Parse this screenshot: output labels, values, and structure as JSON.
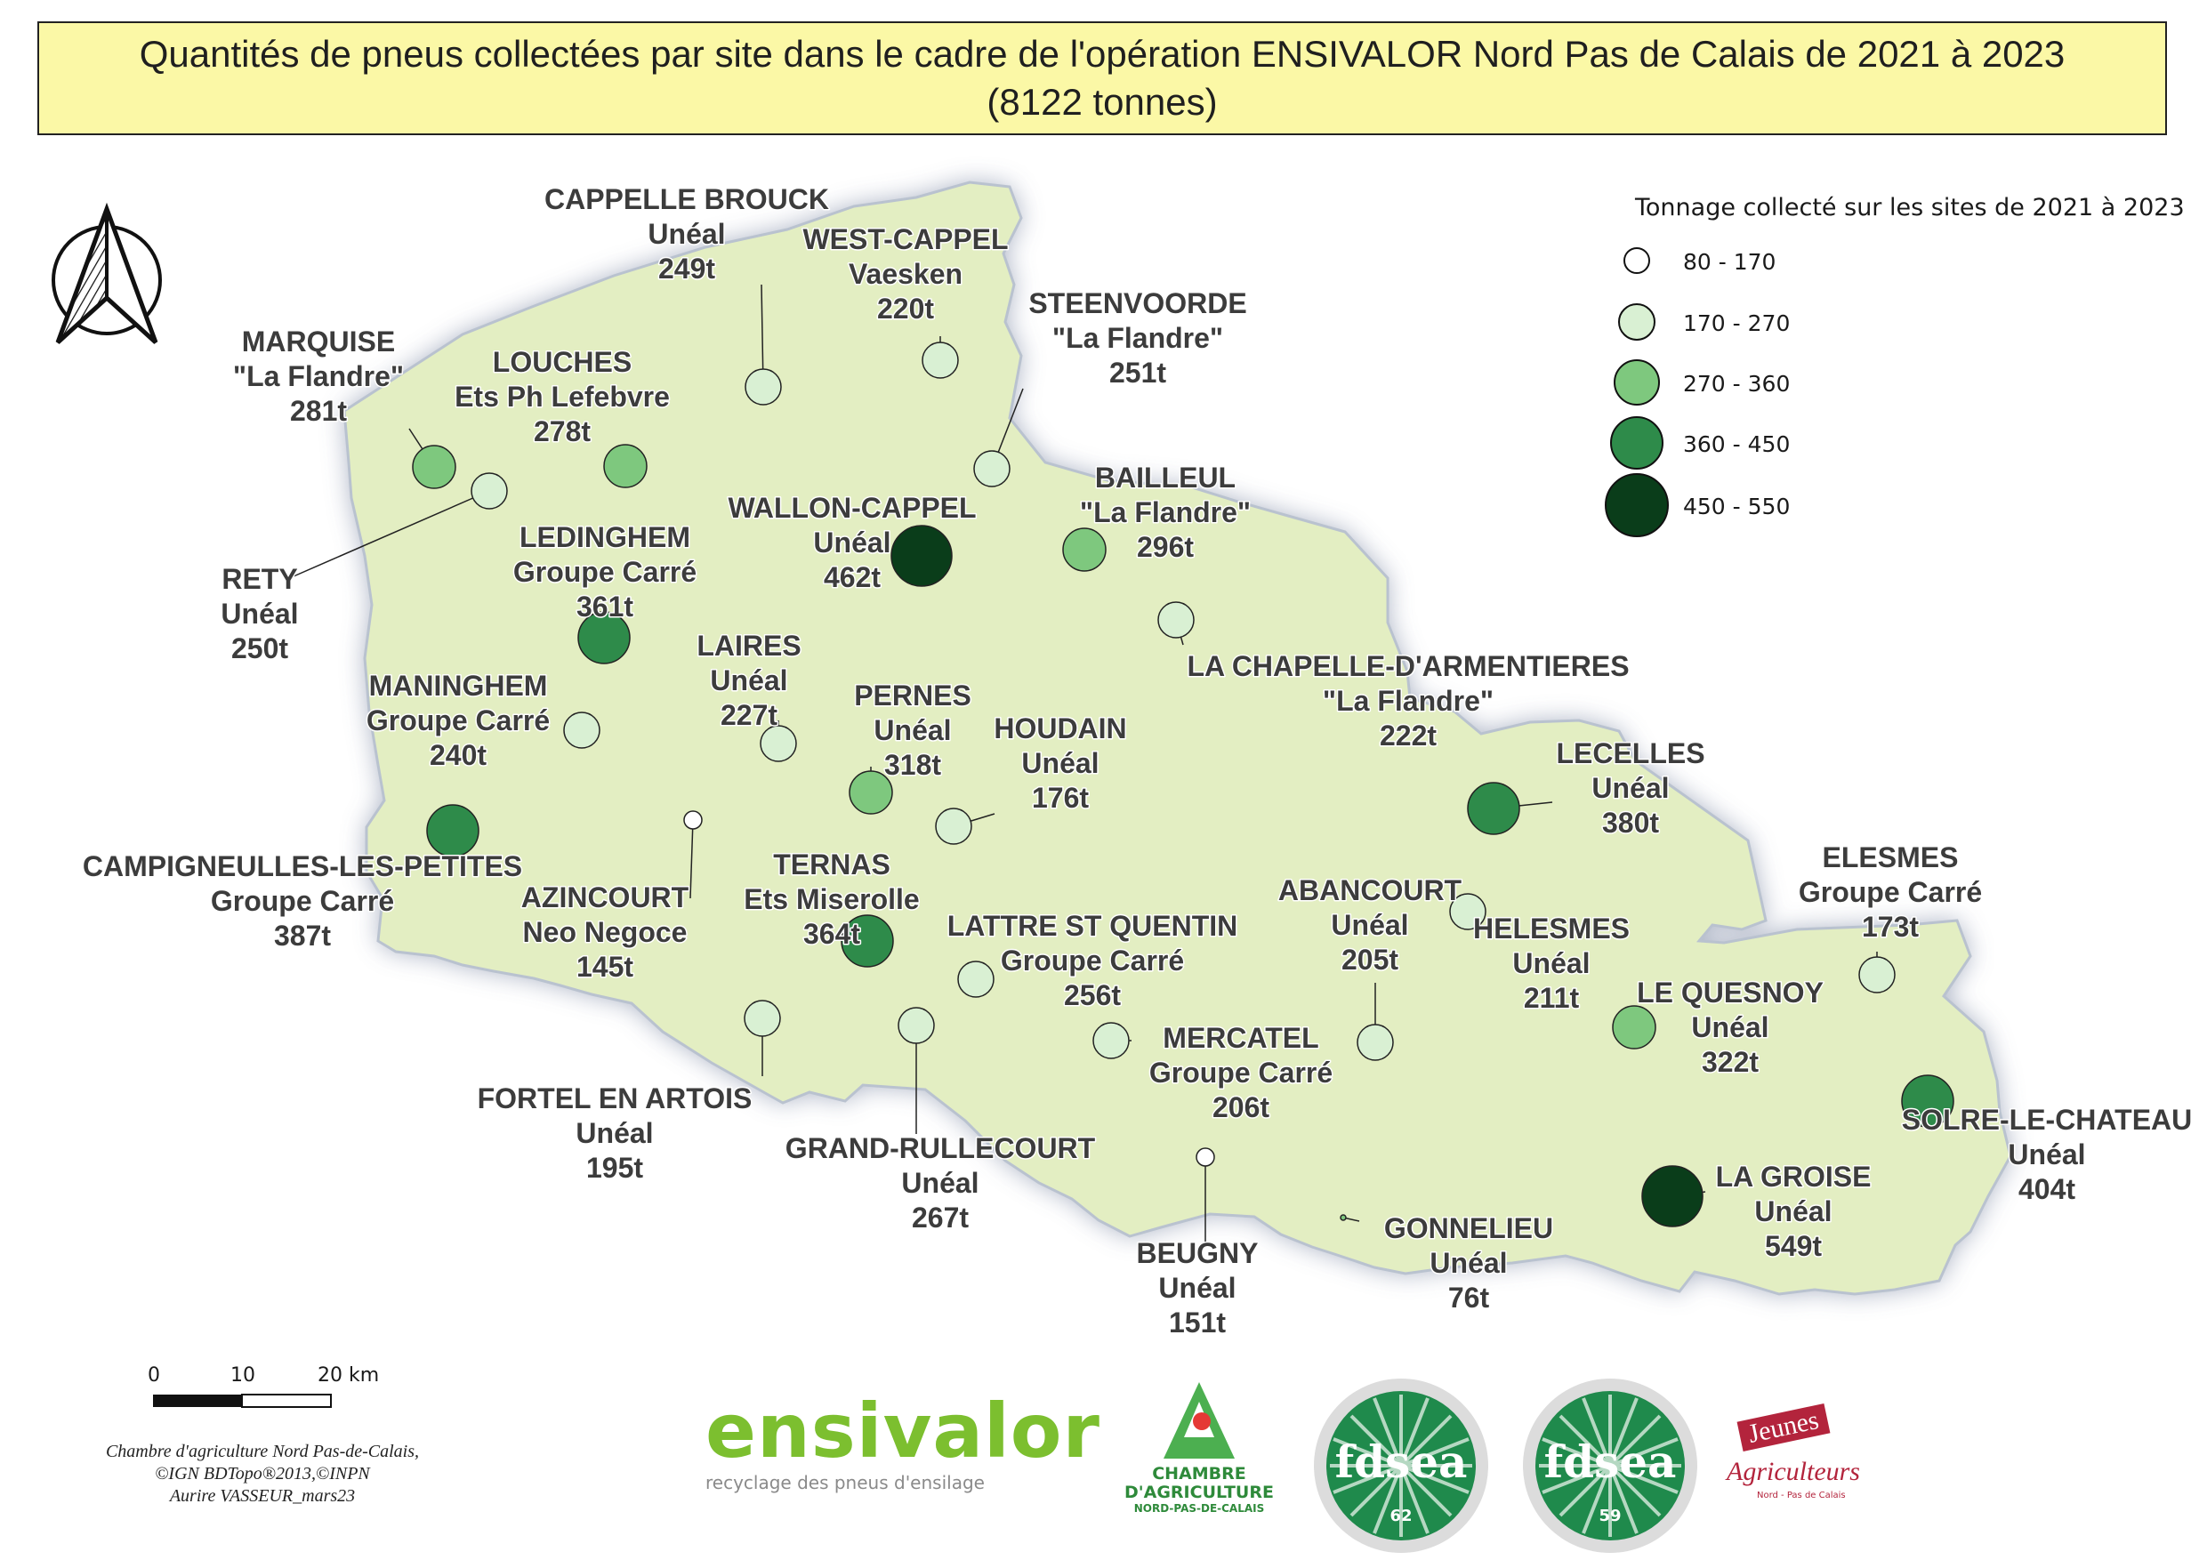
{
  "title": {
    "line1": "Quantités de pneus collectées par site dans le cadre de l'opération ENSIVALOR Nord Pas de Calais de 2021 à 2023",
    "line2": "(8122 tonnes)"
  },
  "legend": {
    "title": "Tonnage collecté sur les sites de 2021 à 2023",
    "classes": [
      {
        "label": "80 - 170",
        "color": "#ffffff"
      },
      {
        "label": "170 - 270",
        "color": "#d9f0d3"
      },
      {
        "label": "270 - 360",
        "color": "#7ec87e"
      },
      {
        "label": "360 - 450",
        "color": "#2e8b4a"
      },
      {
        "label": "450 - 550",
        "color": "#0a3d1a"
      }
    ]
  },
  "scale_bar": {
    "labels": [
      "0",
      "10",
      "20 km"
    ]
  },
  "sites": [
    {
      "name": "CAPPELLE BROUCK",
      "operator": "Unéal",
      "tonnage": "249t"
    },
    {
      "name": "WEST-CAPPEL",
      "operator": "Vaesken",
      "tonnage": "220t"
    },
    {
      "name": "STEENVOORDE",
      "operator": "\"La Flandre\"",
      "tonnage": "251t"
    },
    {
      "name": "MARQUISE",
      "operator": "\"La Flandre\"",
      "tonnage": "281t"
    },
    {
      "name": "LOUCHES",
      "operator": "Ets Ph Lefebvre",
      "tonnage": "278t"
    },
    {
      "name": "RETY",
      "operator": "Unéal",
      "tonnage": "250t"
    },
    {
      "name": "WALLON-CAPPEL",
      "operator": "Unéal",
      "tonnage": "462t"
    },
    {
      "name": "BAILLEUL",
      "operator": "\"La Flandre\"",
      "tonnage": "296t"
    },
    {
      "name": "LEDINGHEM",
      "operator": "Groupe Carré",
      "tonnage": "361t"
    },
    {
      "name": "LA CHAPELLE-D'ARMENTIERES",
      "operator": "\"La Flandre\"",
      "tonnage": "222t"
    },
    {
      "name": "LAIRES",
      "operator": "Unéal",
      "tonnage": "227t"
    },
    {
      "name": "MANINGHEM",
      "operator": "Groupe Carré",
      "tonnage": "240t"
    },
    {
      "name": "PERNES",
      "operator": "Unéal",
      "tonnage": "318t"
    },
    {
      "name": "HOUDAIN",
      "operator": "Unéal",
      "tonnage": "176t"
    },
    {
      "name": "LECELLES",
      "operator": "Unéal",
      "tonnage": "380t"
    },
    {
      "name": "CAMPIGNEULLES-LES-PETITES",
      "operator": "Groupe Carré",
      "tonnage": "387t"
    },
    {
      "name": "AZINCOURT",
      "operator": "Neo Negoce",
      "tonnage": "145t"
    },
    {
      "name": "TERNAS",
      "operator": "Ets Miserolle",
      "tonnage": "364t"
    },
    {
      "name": "LATTRE ST QUENTIN",
      "operator": "Groupe Carré",
      "tonnage": "256t"
    },
    {
      "name": "ABANCOURT",
      "operator": "Unéal",
      "tonnage": "205t"
    },
    {
      "name": "HELESMES",
      "operator": "Unéal",
      "tonnage": "211t"
    },
    {
      "name": "ELESMES",
      "operator": "Groupe Carré",
      "tonnage": "173t"
    },
    {
      "name": "LE QUESNOY",
      "operator": "Unéal",
      "tonnage": "322t"
    },
    {
      "name": "MERCATEL",
      "operator": "Groupe Carré",
      "tonnage": "206t"
    },
    {
      "name": "FORTEL EN ARTOIS",
      "operator": "Unéal",
      "tonnage": "195t"
    },
    {
      "name": "GRAND-RULLECOURT",
      "operator": "Unéal",
      "tonnage": "267t"
    },
    {
      "name": "SOLRE-LE-CHATEAU",
      "operator": "Unéal",
      "tonnage": "404t"
    },
    {
      "name": "LA GROISE",
      "operator": "Unéal",
      "tonnage": "549t"
    },
    {
      "name": "GONNELIEU",
      "operator": "Unéal",
      "tonnage": "76t"
    },
    {
      "name": "BEUGNY",
      "operator": "Unéal",
      "tonnage": "151t"
    }
  ],
  "credits": [
    "Chambre d'agriculture Nord Pas-de-Calais,",
    "©IGN BDTopo®2013,©INPN",
    "Aurire VASSEUR_mars23"
  ],
  "logos": {
    "ensivalor_word": "ensivalor",
    "ensivalor_tagline": "recyclage des pneus d'ensilage",
    "chambre_line1": "CHAMBRE",
    "chambre_line2": "D'AGRICULTURE",
    "chambre_line3": "NORD-PAS-DE-CALAIS",
    "fdsea62_name": "fdsea",
    "fdsea62_num": "62",
    "fdsea59_name": "fdsea",
    "fdsea59_num": "59",
    "jeunes_line1": "Jeunes",
    "jeunes_line2": "Agriculteurs",
    "jeunes_line3": "Nord - Pas de Calais"
  }
}
